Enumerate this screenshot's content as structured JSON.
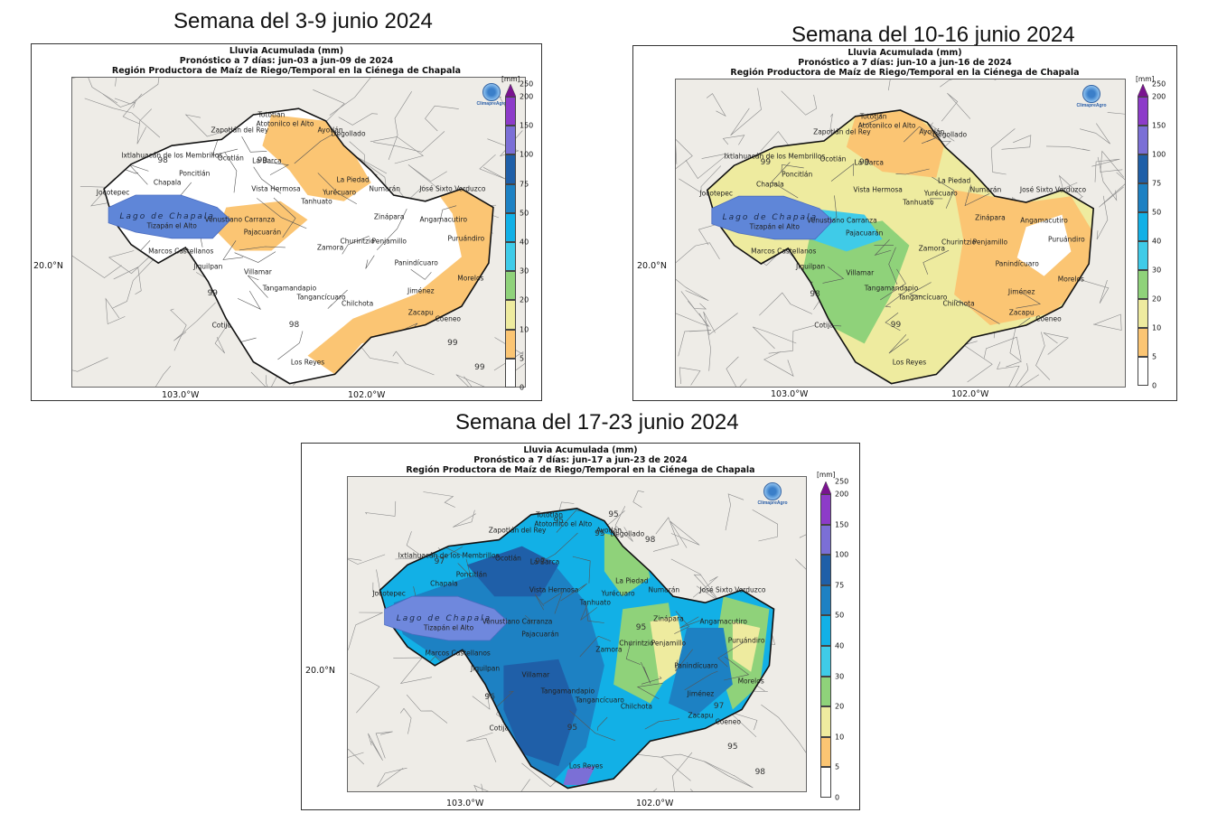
{
  "colorbar": {
    "unit": "[mm]",
    "levels": [
      "0",
      "5",
      "10",
      "20",
      "30",
      "40",
      "50",
      "75",
      "100",
      "150",
      "200",
      "250"
    ],
    "colors": [
      "#ffffff",
      "#fbc573",
      "#eeeb9f",
      "#8fd27a",
      "#3fcbe8",
      "#12b0e6",
      "#1d81c3",
      "#1f5fa8",
      "#7b6fd6",
      "#8d3bc9",
      "#7a1390"
    ],
    "top_color": "#7a1390"
  },
  "shared_labels": {
    "lake": "Lago de Chapala",
    "logo_name": "ClimapreAgro",
    "lat_label": "20.0°N",
    "lon_labels": [
      "103.0°W",
      "102.0°W"
    ],
    "places": [
      {
        "name": "Tototlán"
      },
      {
        "name": "Atotonilco el Alto"
      },
      {
        "name": "Zapotlán del Rey"
      },
      {
        "name": "Ayotlán"
      },
      {
        "name": "Degollado"
      },
      {
        "name": "Ixtlahuacán de los Membrillos"
      },
      {
        "name": "Ocotlán"
      },
      {
        "name": "La Barca"
      },
      {
        "name": "Poncitlán"
      },
      {
        "name": "Chapala"
      },
      {
        "name": "Jocotepec"
      },
      {
        "name": "Vista Hermosa"
      },
      {
        "name": "La Piedad"
      },
      {
        "name": "Yurécuaro"
      },
      {
        "name": "Numarán"
      },
      {
        "name": "José Sixto Verduzco"
      },
      {
        "name": "Tanhuato"
      },
      {
        "name": "Tizapán el Alto"
      },
      {
        "name": "Venustiano Carranza"
      },
      {
        "name": "Pajacuarán"
      },
      {
        "name": "Zinápara"
      },
      {
        "name": "Angamacutiro"
      },
      {
        "name": "Marcos Castellanos"
      },
      {
        "name": "Zamora"
      },
      {
        "name": "Churintzio"
      },
      {
        "name": "Penjamillo"
      },
      {
        "name": "Puruándiro"
      },
      {
        "name": "Jiquilpan"
      },
      {
        "name": "Villamar"
      },
      {
        "name": "Panindícuaro"
      },
      {
        "name": "Tangamandapio"
      },
      {
        "name": "Tangancícuaro"
      },
      {
        "name": "Jiménez"
      },
      {
        "name": "Morelos"
      },
      {
        "name": "Chilchota"
      },
      {
        "name": "Zacapu"
      },
      {
        "name": "Cotija"
      },
      {
        "name": "Coeneo"
      },
      {
        "name": "Los Reyes"
      }
    ]
  },
  "panels": [
    {
      "heading": "Semana del 3-9 junio 2024",
      "title1": "Lluvia Acumulada (mm)",
      "title2": "Pronóstico a 7 días: jun-03 a jun-09 de 2024",
      "title3": "Región Productora de Maíz de Riego/Temporal en la Ciénega de Chapala",
      "contour_labels": [
        "98",
        "99",
        "98",
        "99",
        "99",
        "99"
      ],
      "scheme": "dry"
    },
    {
      "heading": "Semana del 10-16 junio 2024",
      "title1": "Lluvia Acumulada (mm)",
      "title2": "Pronóstico a 7 días: jun-10 a jun-16 de 2024",
      "title3": "Región Productora de Maíz de Riego/Temporal en la Ciénega de Chapala",
      "contour_labels": [
        "99",
        "99",
        "99",
        "98"
      ],
      "scheme": "moderate"
    },
    {
      "heading": "Semana del 17-23 junio 2024",
      "title1": "Lluvia Acumulada (mm)",
      "title2": "Pronóstico a 7 días: jun-17 a jun-23 de 2024",
      "title3": "Región Productora de Maíz de Riego/Temporal en la Ciénega de Chapala",
      "contour_labels": [
        "97",
        "97",
        "95",
        "96",
        "95",
        "98",
        "98",
        "97",
        "95",
        "95",
        "95",
        "95"
      ],
      "scheme": "wet"
    }
  ]
}
